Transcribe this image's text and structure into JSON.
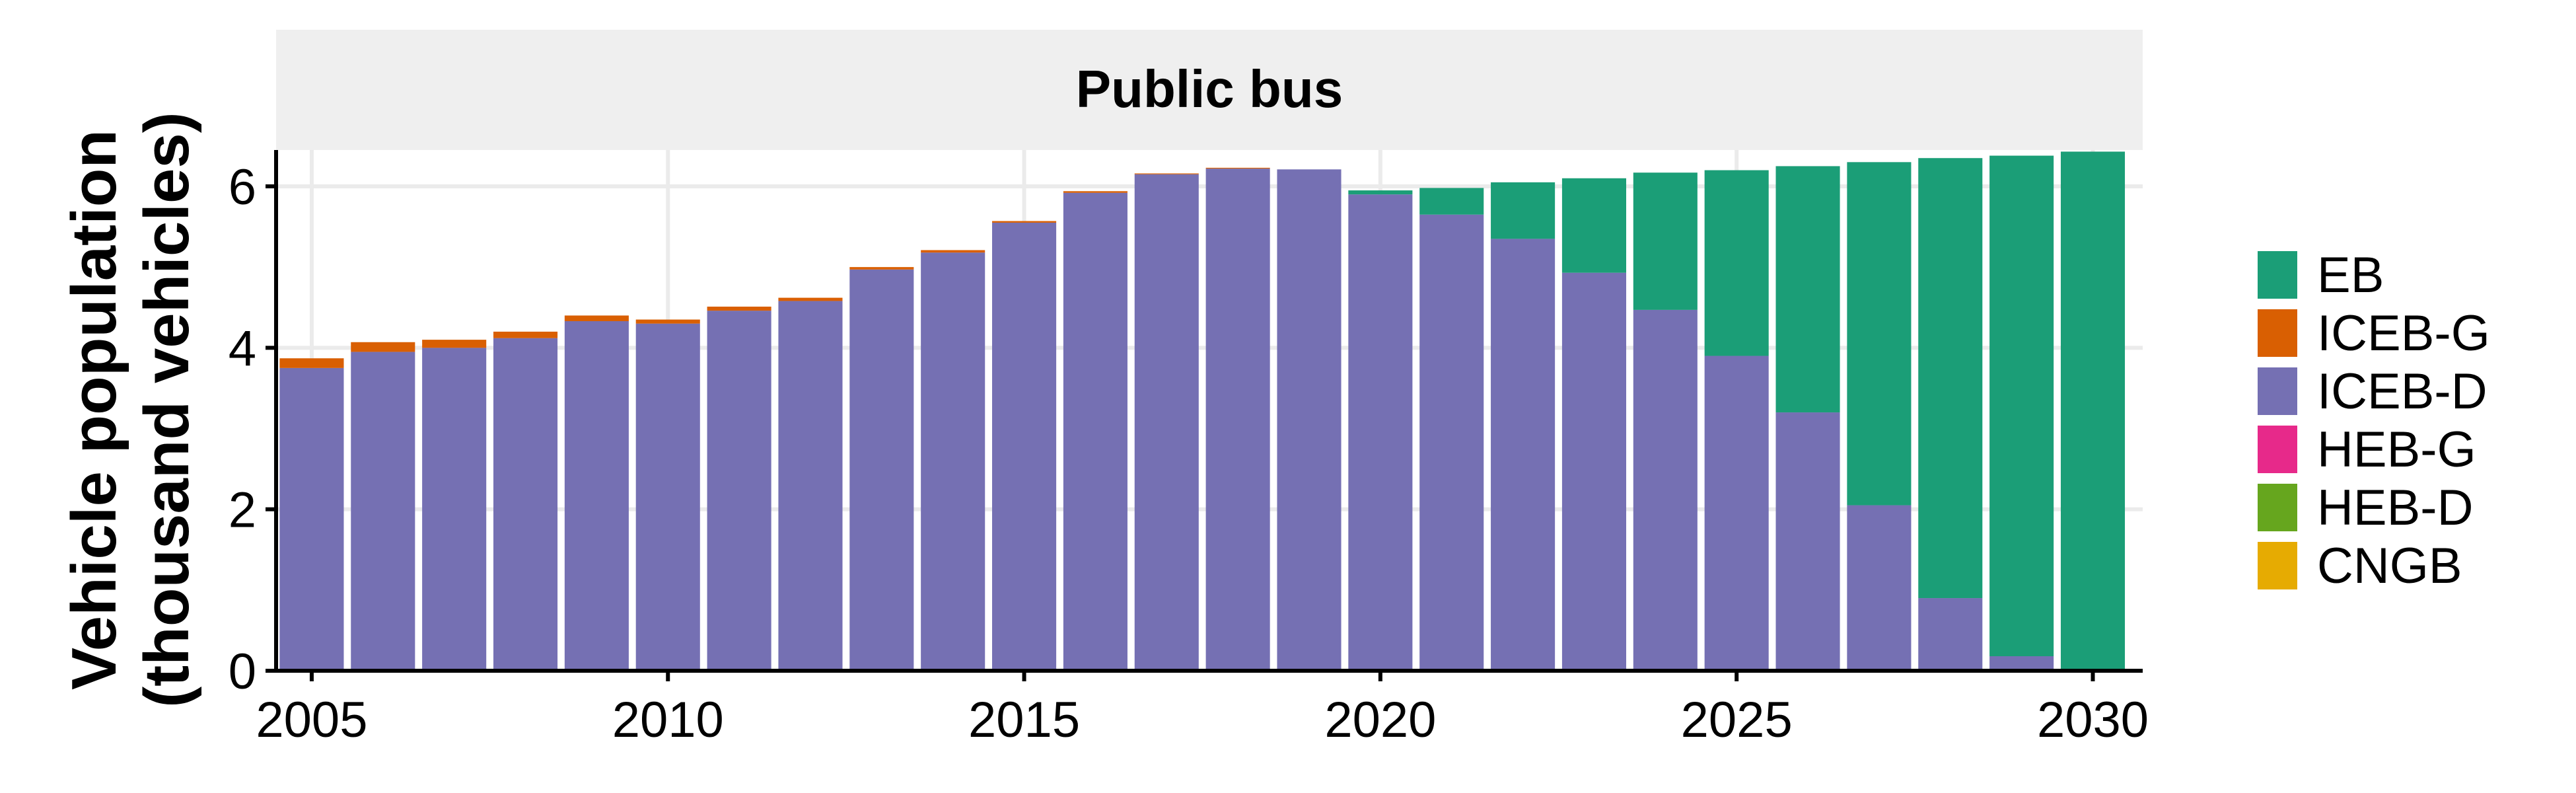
{
  "chart_data": {
    "type": "bar",
    "stacked": true,
    "facet_title": "Public bus",
    "xlabel": "",
    "ylabel": [
      "Vehicle population",
      "(thousand vehicles)"
    ],
    "x": [
      2005,
      2006,
      2007,
      2008,
      2009,
      2010,
      2011,
      2012,
      2013,
      2014,
      2015,
      2016,
      2017,
      2018,
      2019,
      2020,
      2021,
      2022,
      2023,
      2024,
      2025,
      2026,
      2027,
      2028,
      2029,
      2030
    ],
    "xticks": [
      2005,
      2010,
      2015,
      2020,
      2025,
      2030
    ],
    "yticks": [
      0,
      2,
      4,
      6
    ],
    "xlim": [
      2004.5,
      2030.7
    ],
    "ylim": [
      0,
      6.45
    ],
    "grid": true,
    "legend_position": "right",
    "series": [
      {
        "name": "CNGB",
        "color": "#E6AB02",
        "values": [
          0,
          0,
          0,
          0,
          0,
          0,
          0,
          0,
          0,
          0,
          0,
          0,
          0,
          0,
          0,
          0,
          0,
          0,
          0,
          0,
          0,
          0,
          0,
          0,
          0,
          0
        ]
      },
      {
        "name": "HEB-D",
        "color": "#66A61E",
        "values": [
          0,
          0,
          0,
          0,
          0,
          0,
          0,
          0,
          0,
          0,
          0,
          0,
          0,
          0,
          0,
          0,
          0,
          0,
          0,
          0,
          0,
          0,
          0,
          0,
          0,
          0
        ]
      },
      {
        "name": "HEB-G",
        "color": "#E7298A",
        "values": [
          0,
          0,
          0,
          0,
          0,
          0,
          0,
          0,
          0,
          0,
          0,
          0,
          0,
          0,
          0,
          0,
          0,
          0,
          0,
          0,
          0,
          0,
          0,
          0,
          0,
          0
        ]
      },
      {
        "name": "ICEB-D",
        "color": "#7570B3",
        "values": [
          3.75,
          3.95,
          4.0,
          4.12,
          4.33,
          4.3,
          4.46,
          4.58,
          4.97,
          5.18,
          5.55,
          5.92,
          6.15,
          6.22,
          6.21,
          5.9,
          5.65,
          5.35,
          4.93,
          4.47,
          3.9,
          3.2,
          2.05,
          0.9,
          0.18,
          0
        ]
      },
      {
        "name": "ICEB-G",
        "color": "#D95F02",
        "values": [
          0.12,
          0.12,
          0.1,
          0.08,
          0.07,
          0.05,
          0.05,
          0.04,
          0.03,
          0.03,
          0.02,
          0.02,
          0.01,
          0.01,
          0,
          0,
          0,
          0,
          0,
          0,
          0,
          0,
          0,
          0,
          0,
          0
        ]
      },
      {
        "name": "EB",
        "color": "#1B9E77",
        "values": [
          0,
          0,
          0,
          0,
          0,
          0,
          0,
          0,
          0,
          0,
          0,
          0,
          0,
          0,
          0,
          0.05,
          0.33,
          0.7,
          1.17,
          1.7,
          2.3,
          3.05,
          4.25,
          5.45,
          6.2,
          6.43
        ]
      }
    ],
    "legend_order": [
      "EB",
      "ICEB-G",
      "ICEB-D",
      "HEB-G",
      "HEB-D",
      "CNGB"
    ]
  }
}
